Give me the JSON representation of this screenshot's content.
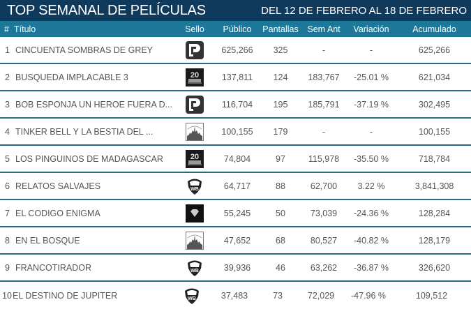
{
  "header": {
    "title": "TOP SEMANAL DE PELÍCULAS",
    "date_range": "DEL 12 DE FEBRERO AL 18 DE FEBRERO"
  },
  "columns": {
    "num": "#",
    "title": "Título",
    "sello": "Sello",
    "publico": "Público",
    "pantallas": "Pantallas",
    "sem_ant": "Sem Ant",
    "variacion": "Variación",
    "acumulado": "Acumulado"
  },
  "colors": {
    "title_bar": "#0f3a5c",
    "header_bar": "#1c7799",
    "divider": "#2b6a84",
    "text": "#555555"
  },
  "rows": [
    {
      "rank": "1",
      "title": "CINCUENTA SOMBRAS DE GREY",
      "sello": "universal-logo-icon",
      "publico": "625,266",
      "pantallas": "325",
      "sem_ant": "-",
      "variacion": "-",
      "acumulado": "625,266"
    },
    {
      "rank": "2",
      "title": "BUSQUEDA IMPLACABLE 3",
      "sello": "fox-logo-icon",
      "publico": "137,811",
      "pantallas": "124",
      "sem_ant": "183,767",
      "variacion": "-25.01 %",
      "acumulado": "621,034"
    },
    {
      "rank": "3",
      "title": "BOB ESPONJA UN HEROE FUERA D...",
      "sello": "universal-logo-icon",
      "publico": "116,704",
      "pantallas": "195",
      "sem_ant": "185,791",
      "variacion": "-37.19 %",
      "acumulado": "302,495"
    },
    {
      "rank": "4",
      "title": "TINKER BELL Y LA BESTIA DEL ...",
      "sello": "disney-logo-icon",
      "publico": "100,155",
      "pantallas": "179",
      "sem_ant": "-",
      "variacion": "-",
      "acumulado": "100,155"
    },
    {
      "rank": "5",
      "title": "LOS PINGUINOS DE MADAGASCAR",
      "sello": "fox-logo-icon",
      "publico": "74,804",
      "pantallas": "97",
      "sem_ant": "115,978",
      "variacion": "-35.50 %",
      "acumulado": "718,784"
    },
    {
      "rank": "6",
      "title": "RELATOS SALVAJES",
      "sello": "warner-logo-icon",
      "publico": "64,717",
      "pantallas": "88",
      "sem_ant": "62,700",
      "variacion": "3.22 %",
      "acumulado": "3,841,308"
    },
    {
      "rank": "7",
      "title": "EL CODIGO ENIGMA",
      "sello": "diamond-logo-icon",
      "publico": "55,245",
      "pantallas": "50",
      "sem_ant": "73,039",
      "variacion": "-24.36 %",
      "acumulado": "128,284"
    },
    {
      "rank": "8",
      "title": "EN EL BOSQUE",
      "sello": "disney-logo-icon",
      "publico": "47,652",
      "pantallas": "68",
      "sem_ant": "80,527",
      "variacion": "-40.82 %",
      "acumulado": "128,179"
    },
    {
      "rank": "9",
      "title": "FRANCOTIRADOR",
      "sello": "warner-logo-icon",
      "publico": "39,936",
      "pantallas": "46",
      "sem_ant": "63,262",
      "variacion": "-36.87 %",
      "acumulado": "326,620"
    },
    {
      "rank": "10",
      "title": "EL DESTINO DE JUPITER",
      "sello": "warner-logo-icon",
      "publico": "37,483",
      "pantallas": "73",
      "sem_ant": "72,029",
      "variacion": "-47.96 %",
      "acumulado": "109,512"
    }
  ]
}
